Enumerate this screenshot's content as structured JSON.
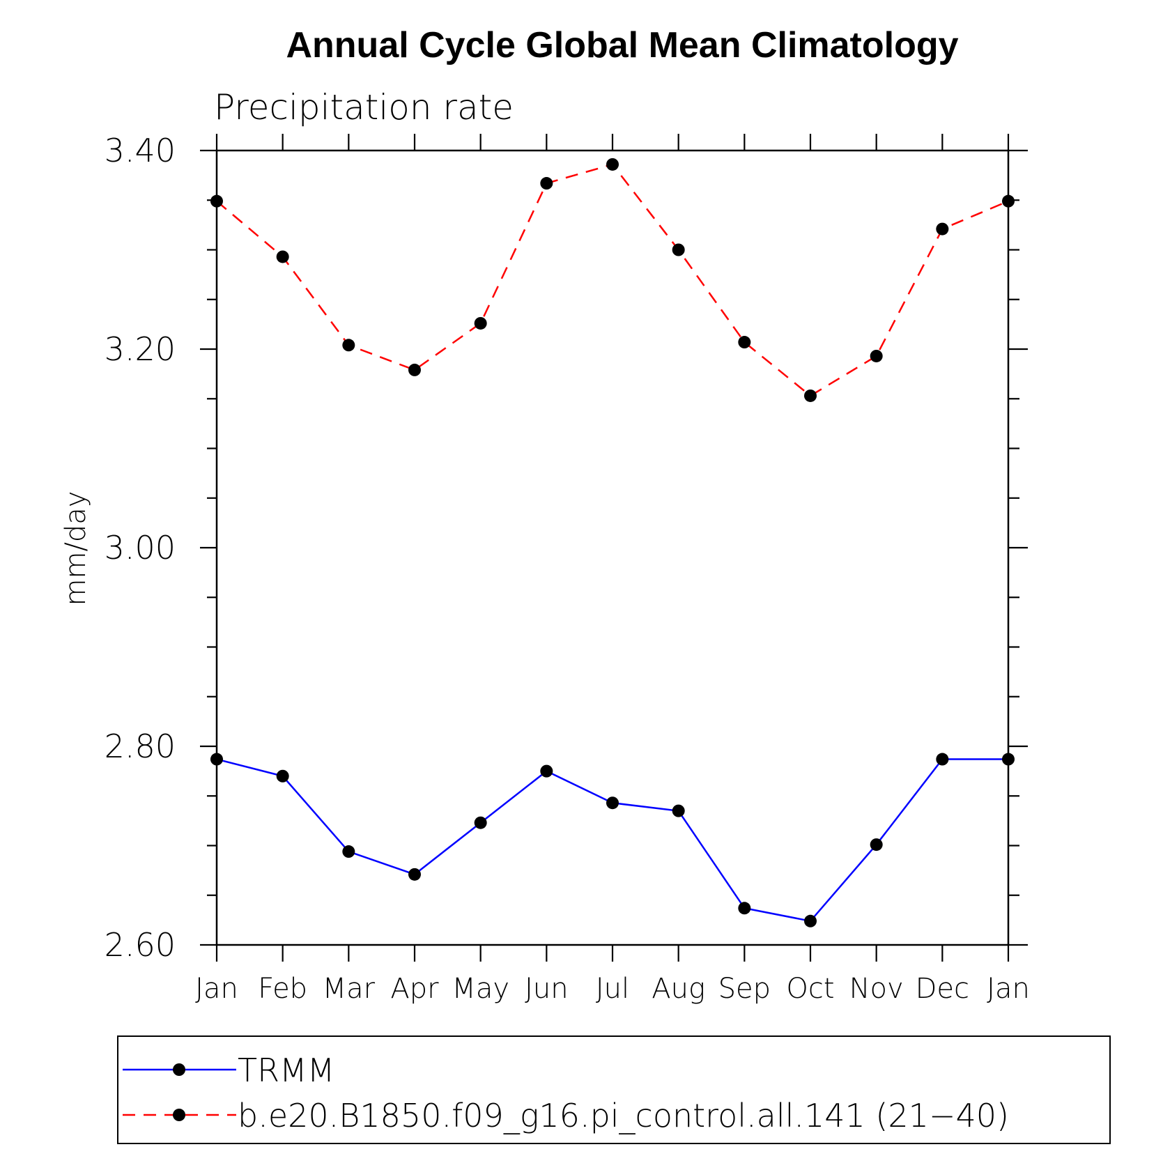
{
  "chart_data": {
    "type": "line",
    "title": "Annual Cycle Global Mean Climatology",
    "subtitle": "Precipitation rate",
    "xlabel": "",
    "ylabel": "mm/day",
    "categories": [
      "Jan",
      "Feb",
      "Mar",
      "Apr",
      "May",
      "Jun",
      "Jul",
      "Aug",
      "Sep",
      "Oct",
      "Nov",
      "Dec",
      "Jan"
    ],
    "ylim": [
      2.6,
      3.4
    ],
    "yticks": [
      "2.60",
      "2.80",
      "3.00",
      "3.20",
      "3.40"
    ],
    "y_minor_step": 0.05,
    "grid": false,
    "legend_position": "bottom",
    "series": [
      {
        "name": "TRMM",
        "color": "#0000ff",
        "line_style": "solid",
        "marker": "filled-circle",
        "values": [
          2.787,
          2.77,
          2.694,
          2.671,
          2.723,
          2.775,
          2.743,
          2.735,
          2.637,
          2.624,
          2.701,
          2.787,
          2.787
        ]
      },
      {
        "name": "b.e20.B1850.f09_g16.pi_control.all.141 (21−40)",
        "color": "#ff0000",
        "line_style": "dashed",
        "marker": "filled-circle",
        "values": [
          3.349,
          3.293,
          3.204,
          3.179,
          3.226,
          3.367,
          3.386,
          3.3,
          3.207,
          3.153,
          3.193,
          3.321,
          3.349
        ]
      }
    ]
  }
}
